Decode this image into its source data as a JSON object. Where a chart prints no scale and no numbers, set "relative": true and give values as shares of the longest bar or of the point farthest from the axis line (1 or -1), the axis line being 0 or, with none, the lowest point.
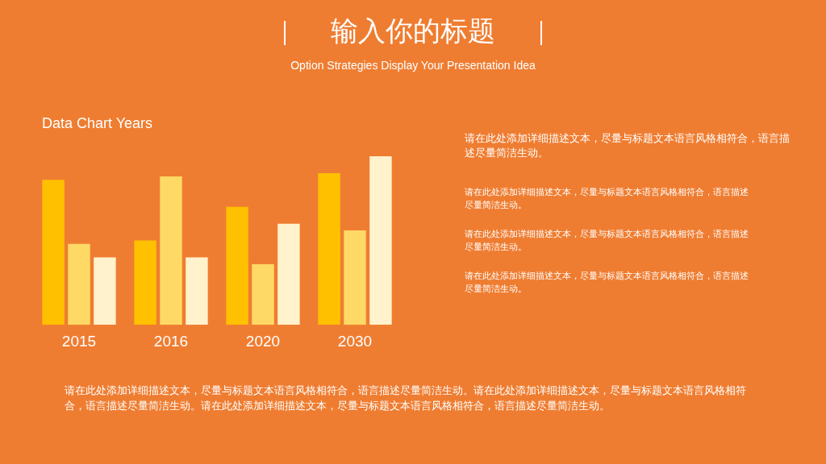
{
  "chart_data": {
    "type": "bar",
    "title": "输入你的标题",
    "subtitle": "Option Strategies Display Your Presentation Idea",
    "relative": true,
    "legend": false,
    "grid": false,
    "tick_labels": "x",
    "categories": [
      "2015",
      "2016",
      "2020",
      "2030"
    ],
    "series": [
      {
        "color": "#ffc000",
        "values": [
          0.86,
          0.5,
          0.7,
          0.9
        ]
      },
      {
        "color": "#ffd966",
        "values": [
          0.48,
          0.88,
          0.36,
          0.56
        ]
      },
      {
        "color": "#fff2cc",
        "values": [
          0.4,
          0.4,
          0.6,
          1
        ]
      }
    ],
    "annotations": [
      "Data Chart Years",
      "请在此处添加详细描述文本，尽量与标题文本语言风格相符合，语言描述尽量简洁生动。",
      "请在此处添加详细描述文本，尽量与标题文本语言风格相符合，语言描述尽量简洁生动。",
      "请在此处添加详细描述文本，尽量与标题文本语言风格相符合，语言描述尽量简洁生动。",
      "请在此处添加详细描述文本，尽量与标题文本语言风格相符合，语言描述尽量简洁生动。",
      "请在此处添加详细描述文本，尽量与标题文本语言风格相符合，语言描述尽量简洁生动。请在此处添加详细描述文本，尽量与标题文本语言风格相符合，语言描述尽量简洁生动。请在此处添加详细描述文本，尽量与标题文本语言风格相符合，语言描述尽量简洁生动。"
    ]
  }
}
